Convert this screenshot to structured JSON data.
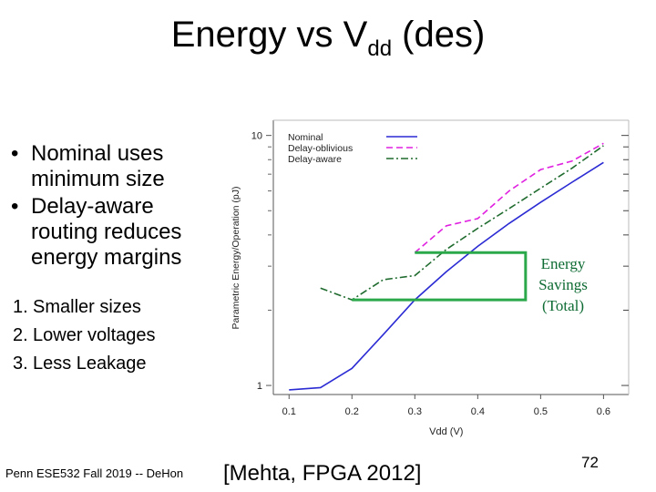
{
  "slide": {
    "title_main": "Energy vs V",
    "title_sub": "dd",
    "title_tail": " (des)",
    "bullets": [
      "Nominal uses minimum size",
      "Delay-aware routing reduces energy margins"
    ],
    "numbered": [
      {
        "num": "1.",
        "text": "Smaller sizes"
      },
      {
        "num": "2.",
        "text": "Lower voltages"
      },
      {
        "num": "3.",
        "text": "Less Leakage"
      }
    ],
    "footer_left": "Penn ESE532 Fall 2019 -- DeHon",
    "citation": "[Mehta,  FPGA 2012]",
    "page_number": "72",
    "annotation": [
      "Energy",
      "Savings",
      "(Total)"
    ]
  },
  "colors": {
    "nominal": "#2b2bd4",
    "oblivious": "#e020e0",
    "aware": "#1f6b2e",
    "bracket": "#2aa84a",
    "annotation_text": "#0e6b33"
  },
  "chart_data": {
    "type": "line",
    "title": "",
    "xlabel": "Vdd (V)",
    "ylabel": "Parametric Energy/Operation (pJ)",
    "xlim": [
      0.075,
      0.64
    ],
    "ylim": [
      0.92,
      11.5
    ],
    "y_scale": "log",
    "x_ticks": [
      0.1,
      0.2,
      0.3,
      0.4,
      0.5,
      0.6
    ],
    "x_tick_labels": [
      "0.1",
      "0.2",
      "0.3",
      "0.4",
      "0.5",
      "0.6"
    ],
    "y_ticks": [
      1,
      10
    ],
    "y_tick_labels": [
      "1",
      "10"
    ],
    "legend_position": "top-left",
    "series": [
      {
        "name": "Nominal",
        "style": "solid",
        "x": [
          0.1,
          0.15,
          0.2,
          0.25,
          0.3,
          0.35,
          0.4,
          0.45,
          0.5,
          0.55,
          0.6
        ],
        "y": [
          0.96,
          0.98,
          1.17,
          1.6,
          2.2,
          2.85,
          3.6,
          4.45,
          5.4,
          6.5,
          7.8
        ]
      },
      {
        "name": "Delay-oblivious",
        "style": "dashed",
        "x": [
          0.3,
          0.35,
          0.4,
          0.45,
          0.5,
          0.55,
          0.6
        ],
        "y": [
          3.4,
          4.35,
          4.65,
          6.0,
          7.3,
          7.9,
          9.3
        ]
      },
      {
        "name": "Delay-aware",
        "style": "dashdot",
        "x": [
          0.15,
          0.2,
          0.25,
          0.3,
          0.35,
          0.4,
          0.45,
          0.5,
          0.55,
          0.6
        ],
        "y": [
          2.45,
          2.2,
          2.65,
          2.75,
          3.5,
          4.25,
          5.1,
          6.15,
          7.4,
          9.1
        ]
      }
    ],
    "annotation_bracket": {
      "label": "Energy Savings (Total)",
      "x_left_upper": 0.3,
      "y_upper": 3.4,
      "x_left_lower": 0.2,
      "y_lower": 2.2,
      "x_right": 0.45
    }
  }
}
